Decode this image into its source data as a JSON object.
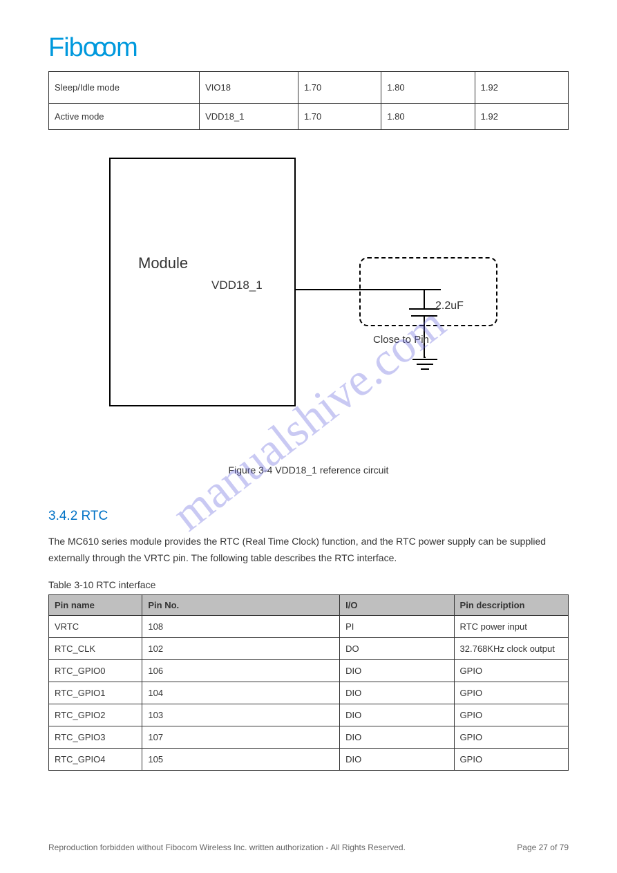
{
  "logo_text": "Fibocom",
  "watermark": "manualshive.com",
  "top_table": {
    "r1": [
      "Sleep/Idle mode",
      "VIO18",
      "1.70",
      "1.80",
      "1.92"
    ],
    "r2": [
      "Active mode",
      "VDD18_1",
      "1.70",
      "1.80",
      "1.92"
    ]
  },
  "diagram": {
    "module_label": "Module",
    "pin_label": "VDD18_1",
    "cap_label": "2.2uF",
    "close_note": "Close to Pin"
  },
  "figure_caption": "Figure 3-4 VDD18_1 reference circuit",
  "section_heading": "3.4.2 RTC",
  "body_paragraph": "The MC610 series module provides the RTC (Real Time Clock) function, and the RTC power supply can be supplied externally through the VRTC pin. The following table describes the RTC interface.",
  "table_caption": "Table 3-10 RTC interface",
  "pin_table": {
    "columns": [
      "Pin name",
      "Pin No.",
      "I/O",
      "Pin description"
    ],
    "rows": [
      [
        "VRTC",
        "108",
        "PI",
        "RTC power input"
      ],
      [
        "RTC_CLK",
        "102",
        "DO",
        "32.768KHz clock output"
      ],
      [
        "RTC_GPIO0",
        "106",
        "DIO",
        "GPIO"
      ],
      [
        "RTC_GPIO1",
        "104",
        "DIO",
        "GPIO"
      ],
      [
        "RTC_GPIO2",
        "103",
        "DIO",
        "GPIO"
      ],
      [
        "RTC_GPIO3",
        "107",
        "DIO",
        "GPIO"
      ],
      [
        "RTC_GPIO4",
        "105",
        "DIO",
        "GPIO"
      ]
    ],
    "col_widths": [
      "18%",
      "38%",
      "22%",
      "22%"
    ]
  },
  "footer": {
    "left": "Reproduction forbidden without Fibocom Wireless Inc. written authorization - All Rights Reserved.",
    "right": "Page 27 of 79"
  }
}
